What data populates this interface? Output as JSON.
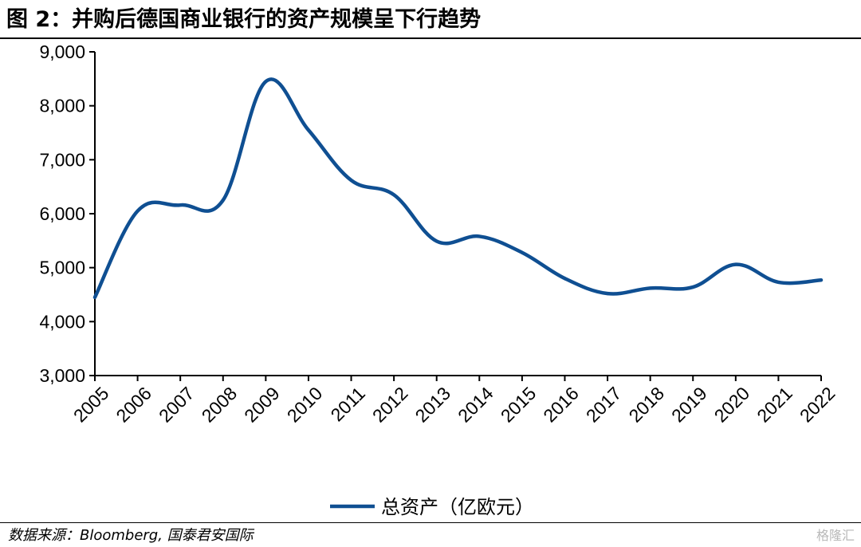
{
  "figure": {
    "title": "图 2：并购后德国商业银行的资产规模呈下行趋势",
    "source": "数据来源：Bloomberg, 国泰君安国际",
    "watermark": "格隆汇"
  },
  "chart_data": {
    "type": "line",
    "title": "",
    "xlabel": "",
    "ylabel": "",
    "x": [
      "2005",
      "2006",
      "2007",
      "2008",
      "2009",
      "2010",
      "2011",
      "2012",
      "2013",
      "2014",
      "2015",
      "2016",
      "2017",
      "2018",
      "2019",
      "2020",
      "2021",
      "2022"
    ],
    "y_ticks": [
      "3,000",
      "4,000",
      "5,000",
      "6,000",
      "7,000",
      "8,000",
      "9,000"
    ],
    "ylim": [
      3000,
      9000
    ],
    "grid": false,
    "legend_position": "bottom",
    "series": [
      {
        "name": "总资产（亿欧元）",
        "color": "#0f4f92",
        "values": [
          4450,
          6050,
          6160,
          6250,
          8450,
          7550,
          6620,
          6350,
          5490,
          5580,
          5280,
          4800,
          4520,
          4620,
          4640,
          5060,
          4730,
          4770
        ]
      }
    ]
  }
}
